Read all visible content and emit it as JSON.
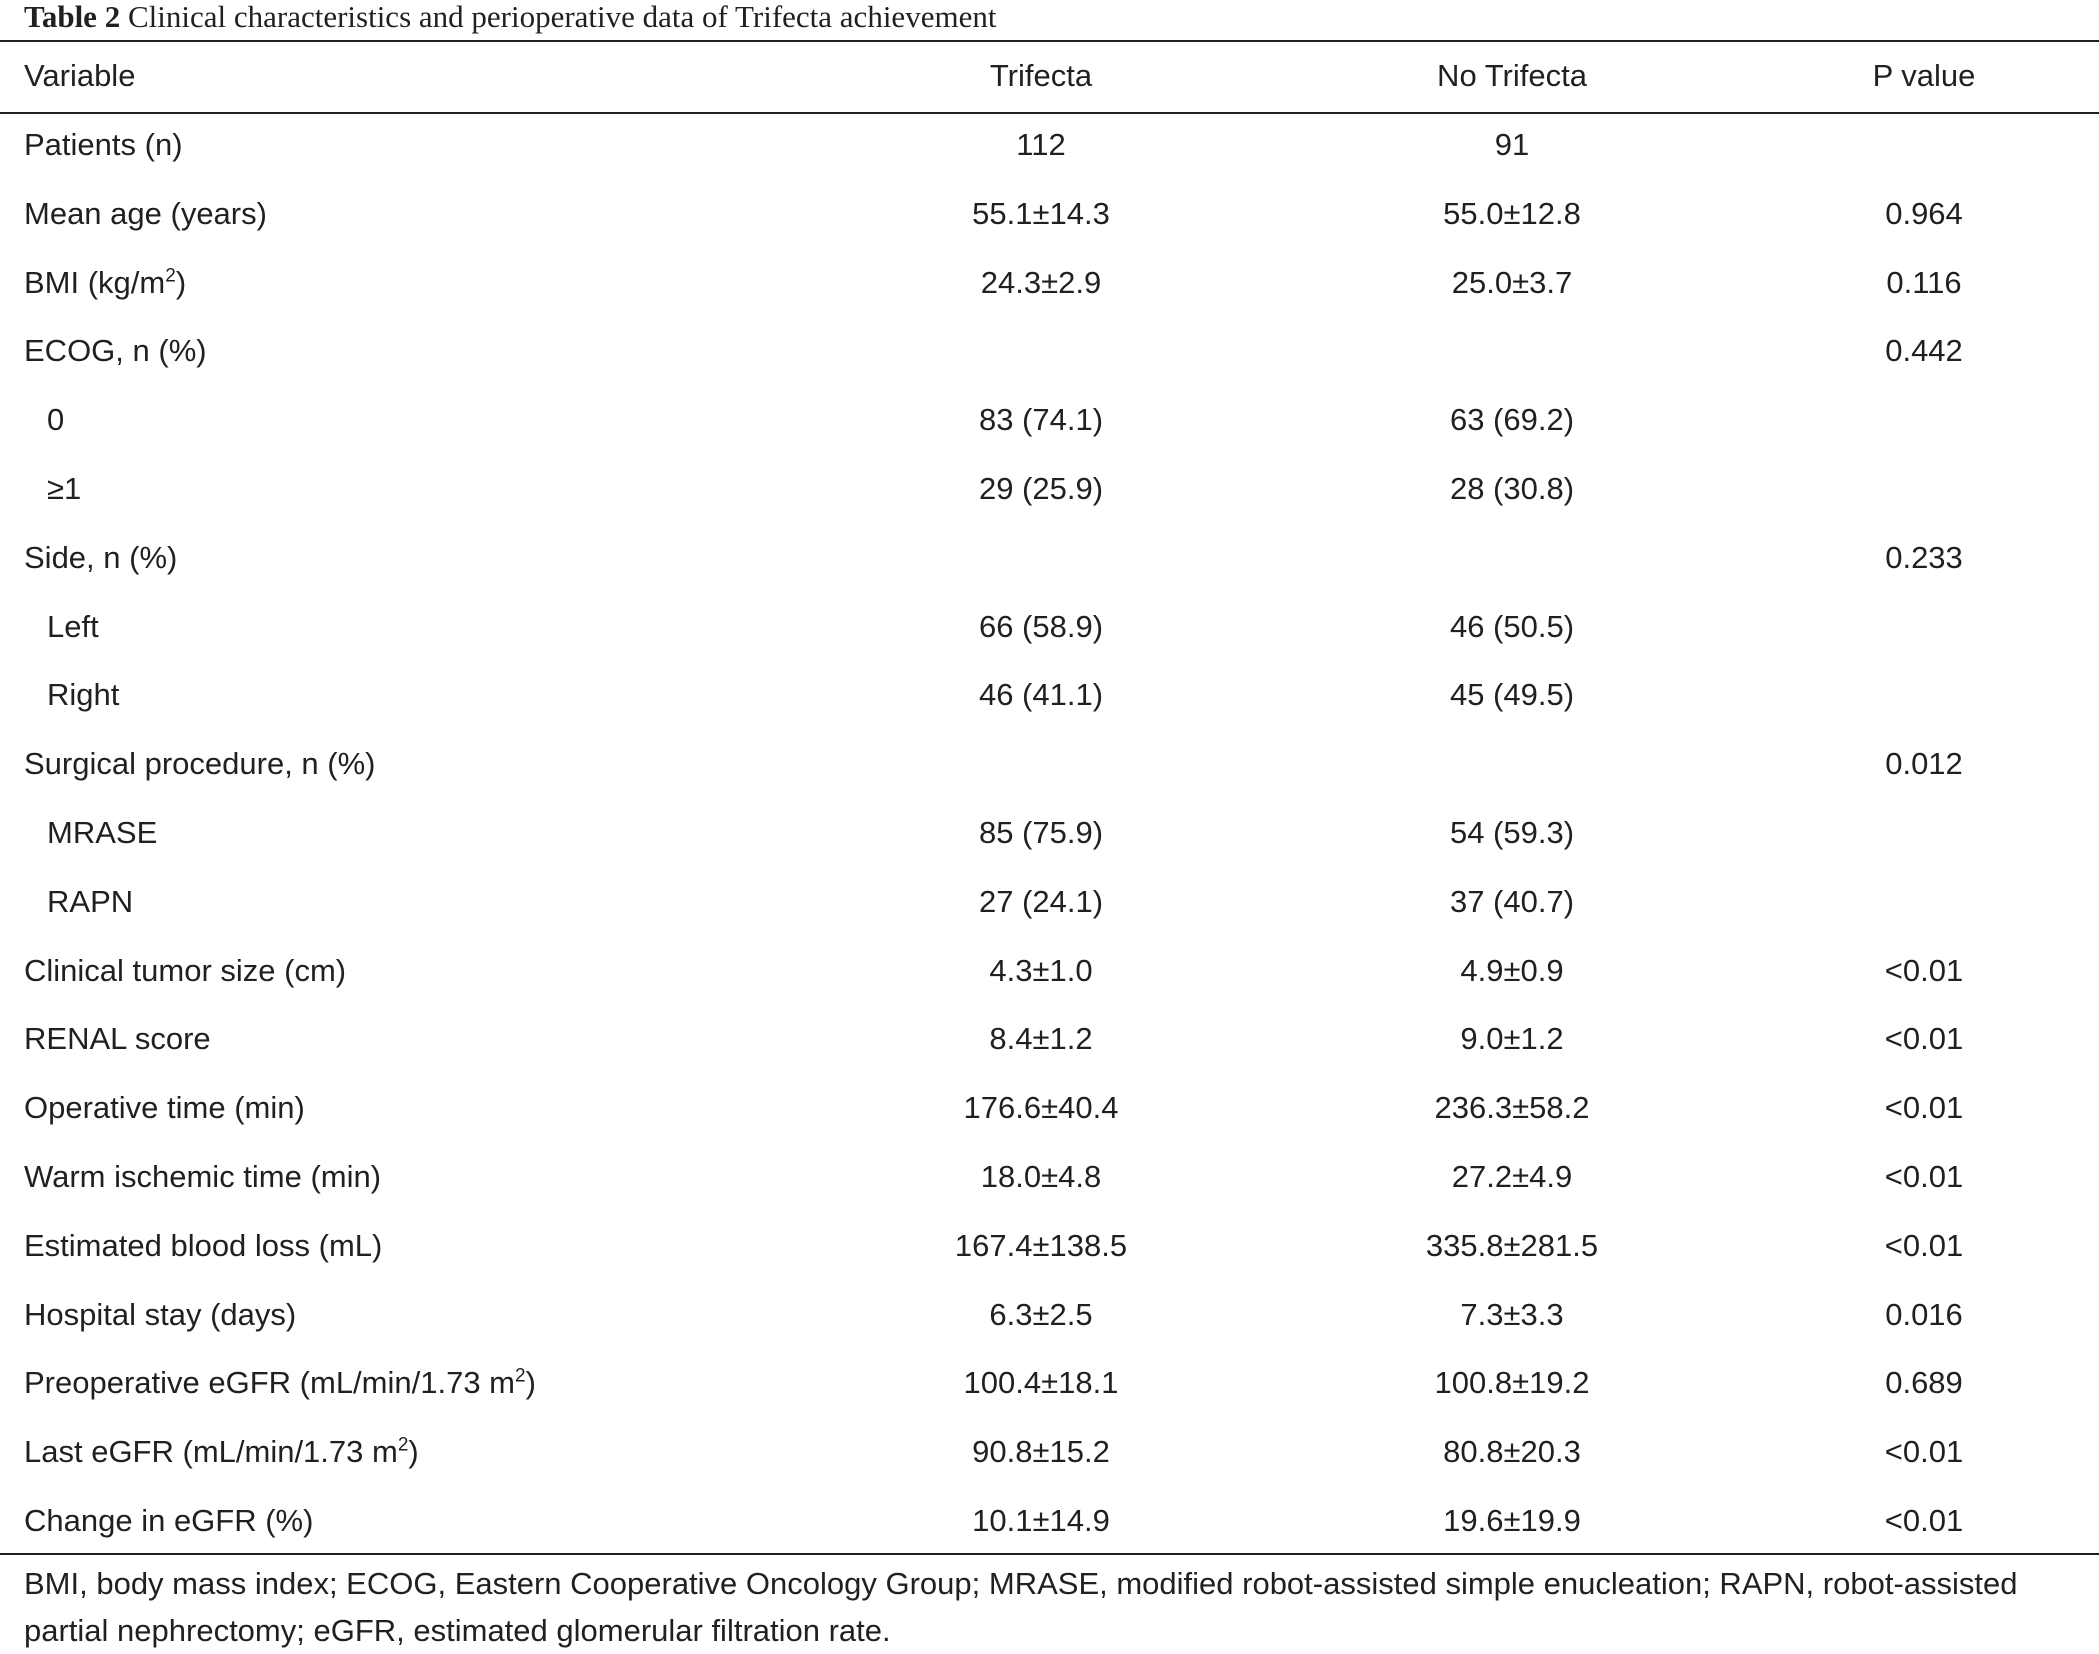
{
  "table": {
    "caption_label": "Table 2",
    "caption_text": "Clinical characteristics and perioperative data of Trifecta achievement",
    "columns": [
      "Variable",
      "Trifecta",
      "No Trifecta",
      "P value"
    ],
    "rows": [
      {
        "label": "Patients (n)",
        "trifecta": "112",
        "no_trifecta": "91",
        "p": ""
      },
      {
        "label": "Mean age (years)",
        "trifecta": "55.1±14.3",
        "no_trifecta": "55.0±12.8",
        "p": "0.964"
      },
      {
        "label": "BMI (kg/m",
        "sup": "2",
        "after": ")",
        "trifecta": "24.3±2.9",
        "no_trifecta": "25.0±3.7",
        "p": "0.116"
      },
      {
        "label": "ECOG, n (%)",
        "trifecta": "",
        "no_trifecta": "",
        "p": "0.442"
      },
      {
        "label": "0",
        "indent": true,
        "trifecta": "83 (74.1)",
        "no_trifecta": "63 (69.2)",
        "p": ""
      },
      {
        "label": "≥1",
        "indent": true,
        "trifecta": "29 (25.9)",
        "no_trifecta": "28 (30.8)",
        "p": ""
      },
      {
        "label": "Side, n (%)",
        "trifecta": "",
        "no_trifecta": "",
        "p": "0.233"
      },
      {
        "label": "Left",
        "indent": true,
        "trifecta": "66 (58.9)",
        "no_trifecta": "46 (50.5)",
        "p": ""
      },
      {
        "label": "Right",
        "indent": true,
        "trifecta": "46 (41.1)",
        "no_trifecta": "45 (49.5)",
        "p": ""
      },
      {
        "label": "Surgical procedure, n (%)",
        "trifecta": "",
        "no_trifecta": "",
        "p": "0.012"
      },
      {
        "label": "MRASE",
        "indent": true,
        "trifecta": "85 (75.9)",
        "no_trifecta": "54 (59.3)",
        "p": ""
      },
      {
        "label": "RAPN",
        "indent": true,
        "trifecta": "27 (24.1)",
        "no_trifecta": "37 (40.7)",
        "p": ""
      },
      {
        "label": "Clinical tumor size (cm)",
        "trifecta": "4.3±1.0",
        "no_trifecta": "4.9±0.9",
        "p": "<0.01"
      },
      {
        "label": "RENAL score",
        "trifecta": "8.4±1.2",
        "no_trifecta": "9.0±1.2",
        "p": "<0.01"
      },
      {
        "label": "Operative time (min)",
        "trifecta": "176.6±40.4",
        "no_trifecta": "236.3±58.2",
        "p": "<0.01"
      },
      {
        "label": "Warm ischemic time (min)",
        "trifecta": "18.0±4.8",
        "no_trifecta": "27.2±4.9",
        "p": "<0.01"
      },
      {
        "label": "Estimated blood loss (mL)",
        "trifecta": "167.4±138.5",
        "no_trifecta": "335.8±281.5",
        "p": "<0.01"
      },
      {
        "label": "Hospital stay (days)",
        "trifecta": "6.3±2.5",
        "no_trifecta": "7.3±3.3",
        "p": "0.016"
      },
      {
        "label": "Preoperative eGFR (mL/min/1.73 m",
        "sup": "2",
        "after": ")",
        "trifecta": "100.4±18.1",
        "no_trifecta": "100.8±19.2",
        "p": "0.689"
      },
      {
        "label": "Last eGFR (mL/min/1.73 m",
        "sup": "2",
        "after": ")",
        "trifecta": "90.8±15.2",
        "no_trifecta": "80.8±20.3",
        "p": "<0.01"
      },
      {
        "label": "Change in eGFR (%)",
        "trifecta": "10.1±14.9",
        "no_trifecta": "19.6±19.9",
        "p": "<0.01"
      }
    ],
    "footnote": "BMI, body mass index; ECOG, Eastern Cooperative Oncology Group; MRASE, modified robot-assisted simple enucleation; RAPN, robot-assisted partial nephrectomy; eGFR, estimated glomerular filtration rate."
  }
}
